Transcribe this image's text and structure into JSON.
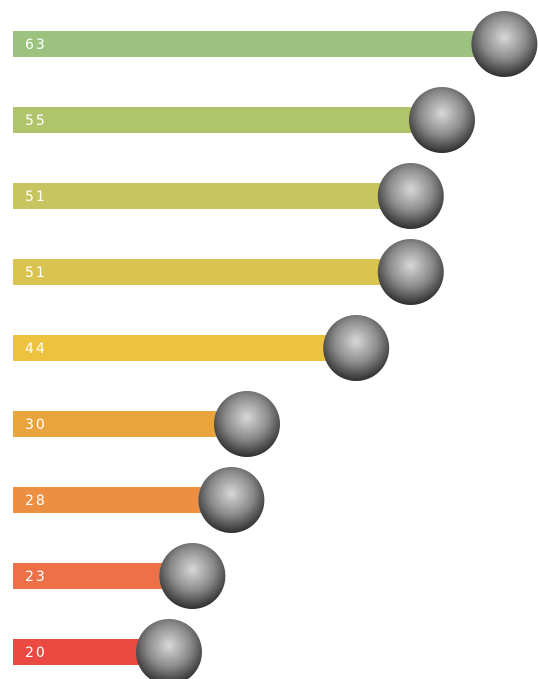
{
  "chart_data": {
    "type": "bar",
    "orientation": "horizontal",
    "categories": [
      null,
      null,
      null,
      null,
      null,
      null,
      null,
      null,
      null
    ],
    "values": [
      63,
      55,
      51,
      51,
      44,
      30,
      28,
      23,
      20
    ],
    "colors": [
      "#9bc27f",
      "#b0c46c",
      "#c8c460",
      "#d9c452",
      "#ecc23e",
      "#eaa43e",
      "#ec8f43",
      "#ec7048",
      "#ea4a42"
    ]
  }
}
